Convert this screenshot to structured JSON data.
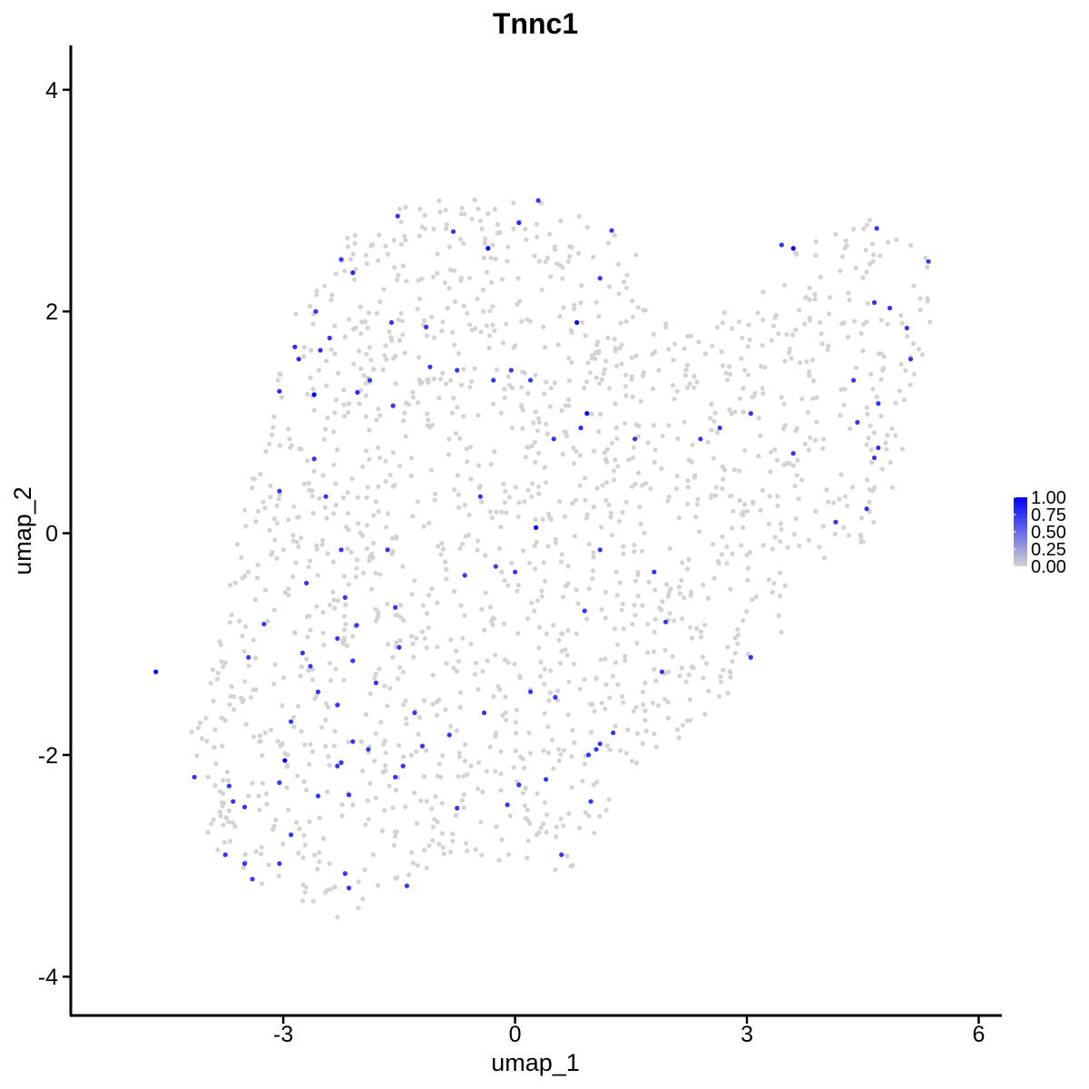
{
  "chart_data": {
    "type": "scatter",
    "title": "Tnnc1",
    "xlabel": "umap_1",
    "ylabel": "umap_2",
    "xlim": [
      -5.75,
      6.3
    ],
    "ylim": [
      -4.35,
      4.4
    ],
    "xticks": [
      -3,
      0,
      3,
      6
    ],
    "yticks": [
      -4,
      -2,
      0,
      2,
      4
    ],
    "xtick_labels": [
      "-3",
      "0",
      "3",
      "6"
    ],
    "ytick_labels": [
      "-4",
      "-2",
      "0",
      "2",
      "4"
    ],
    "grid": false,
    "legend": {
      "placement": "right",
      "labels": [
        "1.00",
        "0.75",
        "0.50",
        "0.25",
        "0.00"
      ],
      "values": [
        1.0,
        0.75,
        0.5,
        0.25,
        0.0
      ],
      "low_color": "#d3d3d3",
      "high_color": "#0000ff"
    },
    "background_cells": {
      "count": 1700,
      "value": 0,
      "color": "#d3d3d3",
      "region_outline": [
        [
          -4.65,
          -1.15
        ],
        [
          -4.2,
          -1.4
        ],
        [
          -3.9,
          -1.15
        ],
        [
          -3.7,
          -0.4
        ],
        [
          -3.55,
          0.3
        ],
        [
          -3.2,
          0.9
        ],
        [
          -3.05,
          1.6
        ],
        [
          -2.8,
          2.1
        ],
        [
          -2.3,
          2.6
        ],
        [
          -1.7,
          2.9
        ],
        [
          -1.0,
          3.05
        ],
        [
          -0.2,
          3.05
        ],
        [
          0.7,
          2.95
        ],
        [
          1.5,
          2.75
        ],
        [
          1.75,
          2.2
        ],
        [
          1.7,
          1.9
        ],
        [
          2.4,
          1.9
        ],
        [
          3.3,
          2.3
        ],
        [
          3.6,
          2.55
        ],
        [
          4.3,
          2.75
        ],
        [
          4.5,
          3.05
        ],
        [
          5.0,
          2.7
        ],
        [
          5.4,
          2.45
        ],
        [
          5.4,
          1.95
        ],
        [
          5.3,
          1.5
        ],
        [
          5.1,
          0.9
        ],
        [
          4.9,
          0.4
        ],
        [
          4.6,
          -0.1
        ],
        [
          3.9,
          -0.35
        ],
        [
          3.5,
          -0.6
        ],
        [
          3.45,
          -0.9
        ],
        [
          3.15,
          -1.3
        ],
        [
          2.7,
          -1.55
        ],
        [
          2.3,
          -1.8
        ],
        [
          1.8,
          -2.05
        ],
        [
          1.4,
          -2.25
        ],
        [
          1.1,
          -2.65
        ],
        [
          0.7,
          -3.05
        ],
        [
          0.0,
          -3.0
        ],
        [
          -0.6,
          -2.95
        ],
        [
          -1.3,
          -3.1
        ],
        [
          -1.9,
          -3.35
        ],
        [
          -2.4,
          -3.5
        ],
        [
          -2.9,
          -3.25
        ],
        [
          -3.4,
          -3.2
        ],
        [
          -3.8,
          -2.95
        ],
        [
          -4.2,
          -2.7
        ],
        [
          -4.3,
          -2.2
        ],
        [
          -4.1,
          -1.9
        ],
        [
          -4.35,
          -1.6
        ]
      ]
    },
    "highlighted_cells": [
      {
        "x": -4.65,
        "y": -1.25,
        "v": 1.0
      },
      {
        "x": -2.6,
        "y": 1.25,
        "v": 1.0
      },
      {
        "x": -0.35,
        "y": 2.57,
        "v": 1.0
      },
      {
        "x": 0.8,
        "y": 1.9,
        "v": 1.0
      },
      {
        "x": 0.93,
        "y": 1.08,
        "v": 1.0
      },
      {
        "x": 0.27,
        "y": 0.05,
        "v": 1.0
      },
      {
        "x": 3.6,
        "y": 2.57,
        "v": 1.0
      },
      {
        "x": -2.98,
        "y": -2.05,
        "v": 1.0
      },
      {
        "x": -3.05,
        "y": 1.28,
        "v": 0.8
      },
      {
        "x": -2.85,
        "y": 1.68,
        "v": 0.8
      },
      {
        "x": -2.8,
        "y": 1.57,
        "v": 0.8
      },
      {
        "x": -2.58,
        "y": 2.0,
        "v": 0.75
      },
      {
        "x": -2.52,
        "y": 1.65,
        "v": 0.8
      },
      {
        "x": -2.4,
        "y": 1.76,
        "v": 0.75
      },
      {
        "x": -2.25,
        "y": 2.47,
        "v": 0.75
      },
      {
        "x": -2.1,
        "y": 2.35,
        "v": 0.8
      },
      {
        "x": -2.04,
        "y": 1.27,
        "v": 0.8
      },
      {
        "x": -1.88,
        "y": 1.38,
        "v": 0.75
      },
      {
        "x": -1.6,
        "y": 1.9,
        "v": 0.75
      },
      {
        "x": -1.58,
        "y": 1.15,
        "v": 0.75
      },
      {
        "x": -1.52,
        "y": 2.86,
        "v": 0.75
      },
      {
        "x": -1.15,
        "y": 1.86,
        "v": 0.75
      },
      {
        "x": -1.1,
        "y": 1.5,
        "v": 0.75
      },
      {
        "x": -0.8,
        "y": 2.72,
        "v": 0.75
      },
      {
        "x": -0.75,
        "y": 1.47,
        "v": 0.75
      },
      {
        "x": -0.28,
        "y": 1.38,
        "v": 0.75
      },
      {
        "x": -0.05,
        "y": 1.47,
        "v": 0.75
      },
      {
        "x": 0.05,
        "y": 2.8,
        "v": 0.8
      },
      {
        "x": 0.3,
        "y": 3.0,
        "v": 0.75
      },
      {
        "x": 0.2,
        "y": 1.38,
        "v": 0.75
      },
      {
        "x": 1.1,
        "y": 2.3,
        "v": 0.75
      },
      {
        "x": 1.25,
        "y": 2.73,
        "v": 0.75
      },
      {
        "x": 0.85,
        "y": 0.95,
        "v": 0.8
      },
      {
        "x": 0.5,
        "y": 0.85,
        "v": 0.75
      },
      {
        "x": 1.55,
        "y": 0.85,
        "v": 0.75
      },
      {
        "x": 2.4,
        "y": 0.85,
        "v": 0.75
      },
      {
        "x": 2.65,
        "y": 0.95,
        "v": 0.75
      },
      {
        "x": 3.05,
        "y": 1.08,
        "v": 0.75
      },
      {
        "x": 3.45,
        "y": 2.6,
        "v": 0.75
      },
      {
        "x": 4.38,
        "y": 1.38,
        "v": 0.75
      },
      {
        "x": 4.43,
        "y": 1.0,
        "v": 0.75
      },
      {
        "x": 4.7,
        "y": 1.17,
        "v": 0.75
      },
      {
        "x": 4.65,
        "y": 2.08,
        "v": 0.75
      },
      {
        "x": 4.68,
        "y": 2.75,
        "v": 0.75
      },
      {
        "x": 4.85,
        "y": 2.03,
        "v": 0.75
      },
      {
        "x": 5.07,
        "y": 1.85,
        "v": 0.75
      },
      {
        "x": 5.12,
        "y": 1.57,
        "v": 0.75
      },
      {
        "x": 5.35,
        "y": 2.45,
        "v": 0.75
      },
      {
        "x": 4.65,
        "y": 0.68,
        "v": 0.75
      },
      {
        "x": 4.7,
        "y": 0.77,
        "v": 0.75
      },
      {
        "x": 4.55,
        "y": 0.22,
        "v": 0.75
      },
      {
        "x": 4.15,
        "y": 0.1,
        "v": 0.75
      },
      {
        "x": 3.6,
        "y": 0.72,
        "v": 0.75
      },
      {
        "x": -2.6,
        "y": 0.67,
        "v": 0.75
      },
      {
        "x": -2.45,
        "y": 0.33,
        "v": 0.75
      },
      {
        "x": -3.05,
        "y": 0.38,
        "v": 0.75
      },
      {
        "x": -2.25,
        "y": -0.15,
        "v": 0.75
      },
      {
        "x": -1.65,
        "y": -0.15,
        "v": 0.75
      },
      {
        "x": -2.7,
        "y": -0.45,
        "v": 0.75
      },
      {
        "x": -2.2,
        "y": -0.58,
        "v": 0.75
      },
      {
        "x": -1.55,
        "y": -0.67,
        "v": 0.75
      },
      {
        "x": -3.25,
        "y": -0.82,
        "v": 0.75
      },
      {
        "x": -2.05,
        "y": -0.83,
        "v": 0.75
      },
      {
        "x": -2.3,
        "y": -0.95,
        "v": 0.75
      },
      {
        "x": -1.5,
        "y": -1.03,
        "v": 0.75
      },
      {
        "x": -2.75,
        "y": -1.08,
        "v": 0.75
      },
      {
        "x": -3.45,
        "y": -1.12,
        "v": 0.75
      },
      {
        "x": -2.1,
        "y": -1.15,
        "v": 0.75
      },
      {
        "x": -1.8,
        "y": -1.35,
        "v": 0.75
      },
      {
        "x": -2.55,
        "y": -1.43,
        "v": 0.75
      },
      {
        "x": -2.3,
        "y": -1.55,
        "v": 0.75
      },
      {
        "x": -1.3,
        "y": -1.62,
        "v": 0.75
      },
      {
        "x": -2.9,
        "y": -1.7,
        "v": 0.75
      },
      {
        "x": -2.1,
        "y": -1.88,
        "v": 0.75
      },
      {
        "x": -1.9,
        "y": -1.95,
        "v": 0.75
      },
      {
        "x": -1.2,
        "y": -1.92,
        "v": 0.75
      },
      {
        "x": -0.85,
        "y": -1.82,
        "v": 0.75
      },
      {
        "x": -0.4,
        "y": -1.62,
        "v": 0.75
      },
      {
        "x": -2.25,
        "y": -2.07,
        "v": 0.75
      },
      {
        "x": -2.3,
        "y": -2.1,
        "v": 0.75
      },
      {
        "x": -1.45,
        "y": -2.1,
        "v": 0.75
      },
      {
        "x": -1.55,
        "y": -2.2,
        "v": 0.75
      },
      {
        "x": -3.05,
        "y": -2.25,
        "v": 0.75
      },
      {
        "x": -3.7,
        "y": -2.28,
        "v": 0.75
      },
      {
        "x": -3.65,
        "y": -2.42,
        "v": 0.75
      },
      {
        "x": -3.5,
        "y": -2.47,
        "v": 0.75
      },
      {
        "x": -2.55,
        "y": -2.37,
        "v": 0.75
      },
      {
        "x": -2.15,
        "y": -2.36,
        "v": 0.75
      },
      {
        "x": -0.75,
        "y": -2.48,
        "v": 0.75
      },
      {
        "x": -0.1,
        "y": -2.45,
        "v": 0.75
      },
      {
        "x": 0.05,
        "y": -2.27,
        "v": 0.75
      },
      {
        "x": 0.4,
        "y": -2.22,
        "v": 0.75
      },
      {
        "x": -4.15,
        "y": -2.2,
        "v": 0.75
      },
      {
        "x": -2.9,
        "y": -2.72,
        "v": 0.75
      },
      {
        "x": -3.75,
        "y": -2.9,
        "v": 0.75
      },
      {
        "x": -3.5,
        "y": -2.98,
        "v": 0.75
      },
      {
        "x": -3.05,
        "y": -2.98,
        "v": 0.75
      },
      {
        "x": -3.4,
        "y": -3.12,
        "v": 0.75
      },
      {
        "x": -2.2,
        "y": -3.07,
        "v": 0.75
      },
      {
        "x": -2.15,
        "y": -3.2,
        "v": 0.75
      },
      {
        "x": -1.4,
        "y": -3.18,
        "v": 0.75
      },
      {
        "x": 0.6,
        "y": -2.9,
        "v": 0.75
      },
      {
        "x": 0.98,
        "y": -2.42,
        "v": 0.75
      },
      {
        "x": 0.95,
        "y": -2.0,
        "v": 0.75
      },
      {
        "x": 1.05,
        "y": -1.95,
        "v": 0.75
      },
      {
        "x": 1.1,
        "y": -1.9,
        "v": 0.75
      },
      {
        "x": 1.27,
        "y": -1.8,
        "v": 0.75
      },
      {
        "x": 0.2,
        "y": -1.43,
        "v": 0.75
      },
      {
        "x": 0.52,
        "y": -1.48,
        "v": 0.75
      },
      {
        "x": 0.9,
        "y": -0.7,
        "v": 0.75
      },
      {
        "x": 1.1,
        "y": -0.15,
        "v": 0.75
      },
      {
        "x": 0.0,
        "y": -0.35,
        "v": 0.75
      },
      {
        "x": -0.25,
        "y": -0.3,
        "v": 0.75
      },
      {
        "x": -0.65,
        "y": -0.38,
        "v": 0.75
      },
      {
        "x": -0.45,
        "y": 0.33,
        "v": 0.75
      },
      {
        "x": 1.8,
        "y": -0.35,
        "v": 0.75
      },
      {
        "x": 1.95,
        "y": -0.8,
        "v": 0.75
      },
      {
        "x": 1.9,
        "y": -1.25,
        "v": 0.75
      },
      {
        "x": 3.05,
        "y": -1.12,
        "v": 0.75
      },
      {
        "x": -2.65,
        "y": -1.2,
        "v": 0.75
      }
    ]
  }
}
